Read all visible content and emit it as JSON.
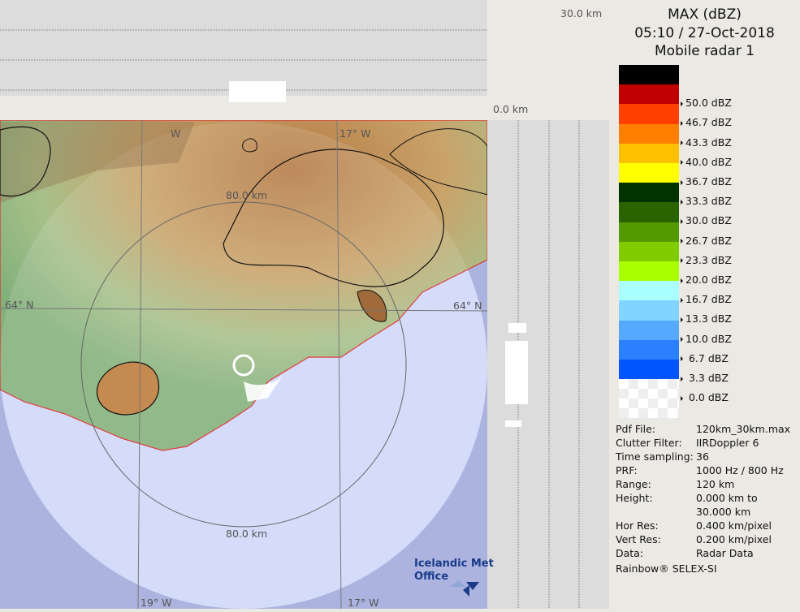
{
  "header": {
    "product": "MAX (dBZ)",
    "datetime": "05:10 / 27-Oct-2018",
    "radar": "Mobile radar 1"
  },
  "legend": [
    {
      "color": "#000000",
      "label": ""
    },
    {
      "color": "#c00000",
      "label": "50.0 dBZ"
    },
    {
      "color": "#ff4000",
      "label": "46.7 dBZ"
    },
    {
      "color": "#ff8000",
      "label": "43.3 dBZ"
    },
    {
      "color": "#ffc000",
      "label": "40.0 dBZ"
    },
    {
      "color": "#ffff00",
      "label": "36.7 dBZ"
    },
    {
      "color": "#003300",
      "label": "33.3 dBZ"
    },
    {
      "color": "#2a6400",
      "label": "30.0 dBZ"
    },
    {
      "color": "#559900",
      "label": "26.7 dBZ"
    },
    {
      "color": "#80cc00",
      "label": "23.3 dBZ"
    },
    {
      "color": "#aaff00",
      "label": "20.0 dBZ"
    },
    {
      "color": "#aaffff",
      "label": "16.7 dBZ"
    },
    {
      "color": "#80d4ff",
      "label": "13.3 dBZ"
    },
    {
      "color": "#55aaff",
      "label": "10.0 dBZ"
    },
    {
      "color": "#2a80ff",
      "label": " 6.7 dBZ"
    },
    {
      "color": "#0055ff",
      "label": " 3.3 dBZ"
    },
    {
      "color": "",
      "label": " 0.0 dBZ"
    }
  ],
  "info": [
    {
      "key": "Pdf File:",
      "value": "120km_30km.max"
    },
    {
      "key": "Clutter Filter:",
      "value": "IIRDoppler 6"
    },
    {
      "key": "Time sampling:",
      "value": "36"
    },
    {
      "key": "PRF:",
      "value": "1000 Hz / 800 Hz"
    },
    {
      "key": "Range:",
      "value": "120 km"
    },
    {
      "key": "Height:",
      "value": "0.000 km to"
    },
    {
      "key": "",
      "value": "30.000 km"
    },
    {
      "key": "Hor Res:",
      "value": "0.400 km/pixel"
    },
    {
      "key": "Vert Res:",
      "value": "0.200 km/pixel"
    },
    {
      "key": "Data:",
      "value": "Radar Data"
    }
  ],
  "footer": "Rainbow® SELEX-SI",
  "map": {
    "height_top": "30.0 km",
    "height_bottom": "0.0 km",
    "range_ring_top": "80.0 km",
    "range_ring_bottom": "80.0 km",
    "lat_left": "64° N",
    "lat_right": "64° N",
    "lon_top_left": "W",
    "lon_top_right": "17° W",
    "lon_bottom_left": "19° W",
    "lon_bottom_right": "17° W",
    "logo_line1": "Icelandic Met",
    "logo_line2": "Office"
  }
}
